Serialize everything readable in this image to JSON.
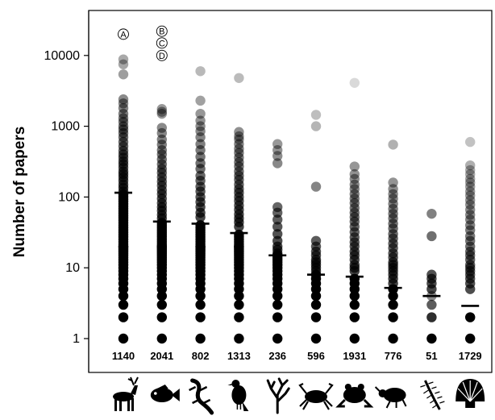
{
  "chart_data": {
    "type": "scatter",
    "title": "",
    "xlabel": "",
    "ylabel": "Number of papers",
    "yscale": "log",
    "ylim": [
      0.65,
      40000
    ],
    "yticks": [
      {
        "value": 1,
        "label": "1"
      },
      {
        "value": 10,
        "label": "10"
      },
      {
        "value": 100,
        "label": "100"
      },
      {
        "value": 1000,
        "label": "1000"
      },
      {
        "value": 10000,
        "label": "10000"
      }
    ],
    "grid": false,
    "legend": "none",
    "point_color": "#000000",
    "median_color": "#000000",
    "groups": [
      {
        "icon": "deer-icon",
        "n": "1140",
        "median": 115,
        "outliers": [
          8800,
          7500,
          5400,
          2400,
          2100,
          1800,
          1500,
          1300,
          1150,
          1000,
          900,
          800,
          700,
          600,
          520,
          450,
          400,
          360,
          320,
          290,
          260,
          230,
          210,
          190,
          170,
          150,
          135,
          120
        ]
      },
      {
        "icon": "fish-icon",
        "n": "2041",
        "median": 45,
        "outliers": [
          1750,
          1600,
          1500,
          950,
          800,
          650,
          550,
          460,
          400,
          340,
          290,
          250,
          220,
          190,
          165,
          145,
          125,
          110,
          95,
          82,
          72,
          64,
          56,
          50
        ]
      },
      {
        "icon": "lizard-icon",
        "n": "802",
        "median": 42,
        "outliers": [
          6000,
          2300,
          1500,
          1200,
          1000,
          850,
          700,
          560,
          460,
          370,
          300,
          250,
          200,
          170,
          140,
          120,
          100,
          85,
          72,
          60,
          52
        ]
      },
      {
        "icon": "bird-icon",
        "n": "1313",
        "median": 31,
        "outliers": [
          4800,
          830,
          720,
          650,
          560,
          480,
          420,
          360,
          310,
          270,
          230,
          200,
          175,
          150,
          130,
          115,
          100,
          88,
          76,
          66,
          57,
          50,
          44,
          38
        ]
      },
      {
        "icon": "coral-icon",
        "n": "236",
        "median": 15,
        "outliers": [
          560,
          460,
          380,
          300,
          72,
          60,
          48,
          38,
          30,
          24,
          20,
          18,
          16
        ]
      },
      {
        "icon": "crab-icon",
        "n": "596",
        "median": 8,
        "outliers": [
          1450,
          1000,
          140,
          24,
          20,
          17,
          15,
          13,
          12,
          11,
          10,
          9
        ]
      },
      {
        "icon": "frog-icon",
        "n": "1931",
        "median": 7.5,
        "outliers": [
          4100,
          270,
          210,
          180,
          150,
          130,
          110,
          95,
          82,
          70,
          60,
          52,
          45,
          38,
          32,
          27,
          23,
          20,
          17,
          15,
          13,
          11,
          10,
          9
        ]
      },
      {
        "icon": "beetle-icon",
        "n": "776",
        "median": 5.2,
        "outliers": [
          550,
          160,
          130,
          110,
          95,
          80,
          68,
          58,
          50,
          42,
          36,
          30,
          26,
          22,
          19,
          16,
          14,
          12,
          11,
          10,
          9,
          8,
          7,
          6
        ]
      },
      {
        "icon": "centipede-icon",
        "n": "51",
        "median": 4,
        "outliers": [
          58,
          28,
          8,
          7,
          6,
          5
        ]
      },
      {
        "icon": "scallop-icon",
        "n": "1729",
        "median": 2.9,
        "outliers": [
          600,
          280,
          240,
          210,
          180,
          160,
          140,
          120,
          105,
          90,
          78,
          66,
          56,
          48,
          40,
          34,
          28,
          24,
          20,
          17,
          15,
          13,
          11,
          10,
          9,
          8,
          7,
          6,
          5
        ]
      }
    ],
    "annotations": [
      {
        "text": "A",
        "group": 0,
        "value": 20000
      },
      {
        "text": "B",
        "group": 1,
        "value": 22000
      },
      {
        "text": "C",
        "group": 1,
        "value": 15000
      },
      {
        "text": "D",
        "group": 1,
        "value": 10000
      }
    ]
  }
}
